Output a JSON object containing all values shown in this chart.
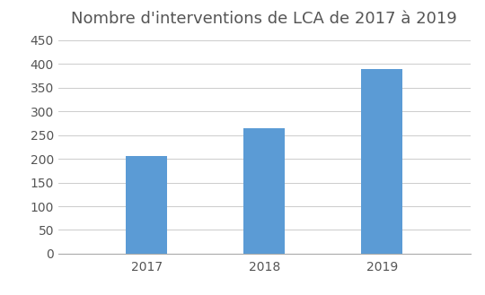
{
  "title": "Nombre d'interventions de LCA de 2017 à 2019",
  "categories": [
    "2017",
    "2018",
    "2019"
  ],
  "values": [
    205,
    265,
    390
  ],
  "bar_color": "#5B9BD5",
  "ylim": [
    0,
    460
  ],
  "yticks": [
    0,
    50,
    100,
    150,
    200,
    250,
    300,
    350,
    400,
    450
  ],
  "title_fontsize": 13,
  "tick_fontsize": 10,
  "background_color": "#ffffff",
  "grid_color": "#cccccc",
  "bar_width": 0.35,
  "xlim": [
    -0.75,
    2.75
  ]
}
